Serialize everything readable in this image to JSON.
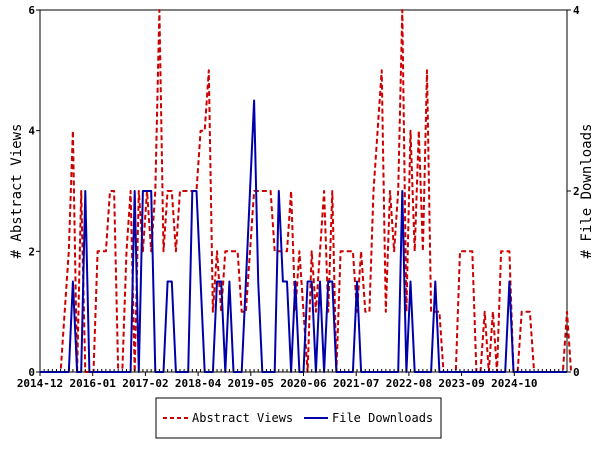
{
  "chart_data": {
    "type": "line",
    "y_left_label": "# Abstract Views",
    "y_right_label": "# File Downloads",
    "y_left_lim": [
      0,
      6
    ],
    "y_right_lim": [
      0,
      4
    ],
    "y_left_ticks": [
      "0",
      "2",
      "4",
      "6"
    ],
    "y_right_ticks": [
      "0",
      "2",
      "4"
    ],
    "x_tick_labels": [
      "2014-12",
      "2016-01",
      "2017-02",
      "2018-04",
      "2019-05",
      "2020-06",
      "2021-07",
      "2022-08",
      "2023-09",
      "2024-10"
    ],
    "x_lim": [
      0,
      128
    ],
    "legend_position": "bottom",
    "series": [
      {
        "name": "Abstract Views",
        "axis": "left",
        "color": "#cc0000",
        "style": "dashed",
        "values": [
          0,
          0,
          0,
          0,
          0,
          0,
          1,
          2,
          4,
          0,
          3,
          0,
          0,
          0,
          2,
          2,
          2,
          3,
          3,
          0,
          0,
          2,
          3,
          0,
          3,
          2,
          3,
          2,
          3,
          6,
          2,
          3,
          3,
          2,
          3,
          3,
          3,
          3,
          3,
          4,
          4,
          5,
          1,
          2,
          1,
          2,
          2,
          2,
          2,
          1,
          1,
          2,
          3,
          3,
          3,
          3,
          3,
          2,
          2,
          2,
          2,
          3,
          1,
          2,
          1,
          0,
          2,
          1,
          2,
          3,
          1,
          3,
          0,
          2,
          2,
          2,
          2,
          1,
          2,
          1,
          1,
          3,
          4,
          5,
          1,
          3,
          2,
          3,
          6,
          1,
          4,
          2,
          4,
          2,
          5,
          1,
          1,
          1,
          0,
          0,
          0,
          0,
          2,
          2,
          2,
          2,
          0,
          0,
          1,
          0,
          1,
          0,
          2,
          2,
          2,
          0,
          0,
          1,
          1,
          1,
          0,
          0,
          0,
          0,
          0,
          0,
          0,
          0,
          1,
          0
        ]
      },
      {
        "name": "File Downloads",
        "axis": "right",
        "color": "#0000aa",
        "style": "solid",
        "values": [
          0,
          0,
          0,
          0,
          0,
          0,
          0,
          0,
          1,
          0,
          0,
          2,
          0,
          0,
          0,
          0,
          0,
          0,
          0,
          0,
          0,
          0,
          0,
          2,
          0,
          2,
          2,
          2,
          0,
          0,
          0,
          1,
          1,
          0,
          0,
          0,
          0,
          2,
          2,
          1,
          0,
          0,
          0,
          1,
          1,
          0,
          1,
          0,
          0,
          0,
          1,
          2,
          3,
          1,
          0,
          0,
          0,
          0,
          2,
          1,
          1,
          0,
          1,
          0,
          0,
          1,
          1,
          0,
          1,
          0,
          1,
          1,
          0,
          0,
          0,
          0,
          0,
          1,
          0,
          0,
          0,
          0,
          0,
          0,
          0,
          0,
          0,
          0,
          2,
          0,
          1,
          0,
          0,
          0,
          0,
          0,
          1,
          0,
          0,
          0,
          0,
          0,
          0,
          0,
          0,
          0,
          0,
          0,
          0,
          0,
          0,
          0,
          0,
          0,
          1,
          0,
          0,
          0,
          0,
          0,
          0,
          0,
          0,
          0,
          0,
          0,
          0,
          0,
          0
        ]
      }
    ]
  }
}
